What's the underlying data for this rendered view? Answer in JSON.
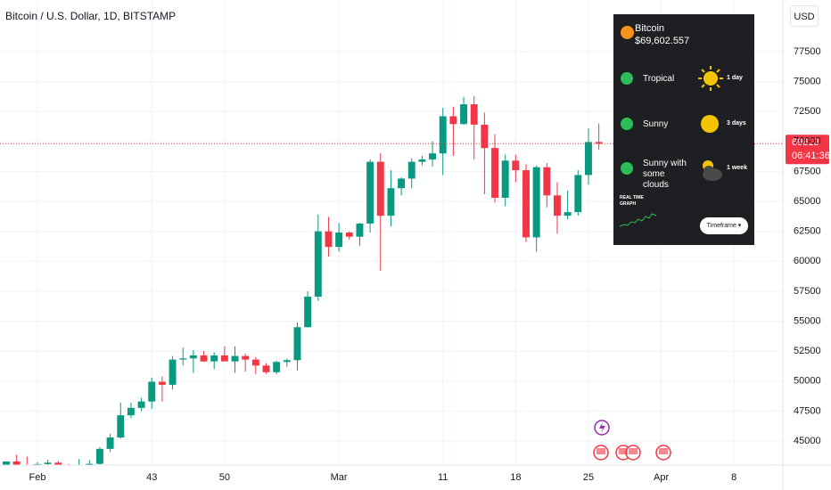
{
  "chart_data": {
    "type": "candlestick",
    "title": "Bitcoin / U.S. Dollar, 1D, BITSTAMP",
    "currency": "USD",
    "up_color": "#089981",
    "down_color": "#f23645",
    "grid": true,
    "x": [
      29,
      30,
      31,
      32,
      33,
      34,
      35,
      36,
      37,
      38,
      39,
      40,
      41,
      42,
      43,
      44,
      45,
      46,
      47,
      48,
      49,
      50,
      51,
      52,
      53,
      54,
      55,
      56,
      57,
      58,
      59,
      60,
      61,
      62,
      63,
      64,
      65,
      66,
      67,
      68,
      69,
      70,
      71,
      72,
      73,
      74,
      75,
      76,
      77,
      78,
      79,
      80,
      81,
      82,
      83,
      84,
      85,
      86
    ],
    "open": [
      42000,
      43300,
      42950,
      42580,
      43080,
      43200,
      43000,
      42600,
      42700,
      43100,
      44350,
      45300,
      47150,
      47770,
      48300,
      49950,
      49700,
      51800,
      51900,
      52150,
      51650,
      52150,
      51650,
      52100,
      51800,
      51300,
      50750,
      51600,
      51750,
      54500,
      57050,
      62500,
      61200,
      62400,
      62050,
      63150,
      68300,
      63800,
      66100,
      66900,
      68300,
      68500,
      69000,
      72100,
      71450,
      73100,
      71400,
      69450,
      65300,
      68400,
      67600,
      62000,
      67850,
      65500,
      63800,
      64100,
      67200,
      69950
    ],
    "high": [
      43300,
      43850,
      43700,
      43250,
      43450,
      43350,
      43100,
      43500,
      43400,
      44500,
      45600,
      48200,
      48200,
      48600,
      50300,
      50400,
      52100,
      52800,
      52600,
      52500,
      52400,
      52900,
      52900,
      52300,
      52000,
      51500,
      51700,
      51900,
      54900,
      57500,
      63900,
      63700,
      63200,
      62500,
      63200,
      68500,
      69000,
      67600,
      67000,
      68600,
      68800,
      70000,
      72800,
      72900,
      73700,
      73800,
      72400,
      70600,
      68900,
      68900,
      68100,
      68000,
      68200,
      66600,
      65900,
      67600,
      71100,
      71500
    ],
    "low": [
      41800,
      42700,
      42300,
      41900,
      42600,
      42900,
      42200,
      42300,
      42600,
      42800,
      44100,
      45200,
      46900,
      47500,
      47700,
      48300,
      49300,
      51300,
      50700,
      51600,
      51000,
      51800,
      50700,
      50800,
      50600,
      50600,
      50600,
      51200,
      50900,
      54500,
      56700,
      60400,
      60800,
      61800,
      61300,
      62400,
      59200,
      62900,
      65500,
      66100,
      68000,
      67900,
      67200,
      68800,
      71400,
      68500,
      65600,
      64900,
      64600,
      66600,
      61600,
      60800,
      64500,
      62300,
      63500,
      63800,
      66400,
      69300
    ],
    "close": [
      43300,
      42950,
      42580,
      43080,
      43200,
      43000,
      42600,
      42700,
      43100,
      44350,
      45300,
      47150,
      47770,
      48300,
      49950,
      49700,
      51800,
      51900,
      52150,
      51650,
      52150,
      51650,
      52100,
      51800,
      51300,
      50750,
      51600,
      51750,
      54500,
      57050,
      62500,
      61200,
      62400,
      62050,
      63150,
      68300,
      63800,
      66100,
      66900,
      68300,
      68500,
      69000,
      72100,
      71450,
      73100,
      71400,
      69450,
      65300,
      68400,
      67600,
      62000,
      67850,
      65500,
      63800,
      64100,
      67200,
      69950,
      69813
    ],
    "xlim": [
      28.4,
      103.7
    ],
    "xticks": [
      {
        "value": 32,
        "label": "Feb"
      },
      43,
      50,
      {
        "value": 61,
        "label": "Mar"
      },
      {
        "value": 71,
        "label": "11"
      },
      {
        "value": 78,
        "label": "18"
      },
      {
        "value": 85,
        "label": "25"
      },
      {
        "value": 92,
        "label": "Apr"
      },
      {
        "value": 99,
        "label": "8"
      }
    ],
    "ylim": [
      43000,
      81800
    ],
    "yticks": [
      45000,
      47500,
      50000,
      52500,
      55000,
      57500,
      60000,
      62500,
      65000,
      67500,
      70000,
      72500,
      75000,
      77500
    ],
    "last_price": 69813,
    "countdown": "06:41:36"
  },
  "widget": {
    "coin": "Bitcoin",
    "price": "$69,602.557",
    "forecasts": [
      {
        "label": "Tropical",
        "period": "1 day"
      },
      {
        "label": "Sunny",
        "period": "3 days"
      },
      {
        "label": "Sunny with some clouds",
        "period": "1 week"
      }
    ],
    "graph_label": "REAL TIME GRAPH",
    "button": "Timeframe ▾"
  }
}
